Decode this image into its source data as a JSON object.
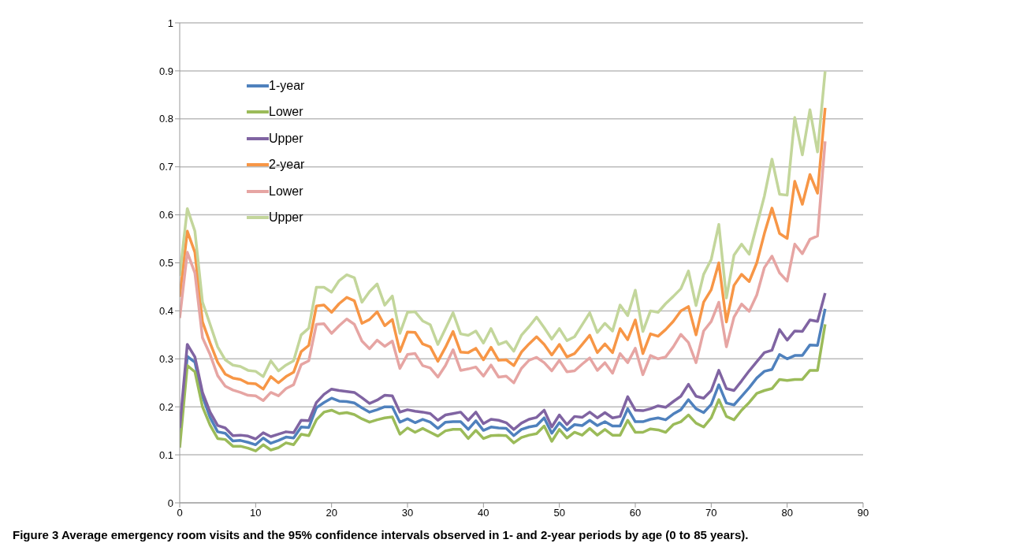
{
  "chart_data": {
    "type": "line",
    "title": "Figure 3 Average emergency room visits and the 95% confidence intervals observed in 1- and 2-year periods by age (0 to 85 years).",
    "x": [
      0,
      1,
      2,
      3,
      4,
      5,
      6,
      7,
      8,
      9,
      10,
      11,
      12,
      13,
      14,
      15,
      16,
      17,
      18,
      19,
      20,
      21,
      22,
      23,
      24,
      25,
      26,
      27,
      28,
      29,
      30,
      31,
      32,
      33,
      34,
      35,
      36,
      37,
      38,
      39,
      40,
      41,
      42,
      43,
      44,
      45,
      46,
      47,
      48,
      49,
      50,
      51,
      52,
      53,
      54,
      55,
      56,
      57,
      58,
      59,
      60,
      61,
      62,
      63,
      64,
      65,
      66,
      67,
      68,
      69,
      70,
      71,
      72,
      73,
      74,
      75,
      76,
      77,
      78,
      79,
      80,
      81,
      82,
      83,
      84,
      85
    ],
    "series": [
      {
        "name": "1-year",
        "color": "#4f81bd",
        "values": [
          0.14,
          0.305,
          0.293,
          0.222,
          0.178,
          0.148,
          0.145,
          0.129,
          0.13,
          0.126,
          0.121,
          0.135,
          0.124,
          0.13,
          0.137,
          0.135,
          0.158,
          0.157,
          0.198,
          0.209,
          0.218,
          0.212,
          0.211,
          0.208,
          0.198,
          0.189,
          0.194,
          0.2,
          0.2,
          0.168,
          0.175,
          0.167,
          0.174,
          0.168,
          0.155,
          0.168,
          0.169,
          0.169,
          0.153,
          0.171,
          0.151,
          0.158,
          0.156,
          0.155,
          0.14,
          0.153,
          0.158,
          0.161,
          0.177,
          0.145,
          0.167,
          0.151,
          0.163,
          0.161,
          0.172,
          0.161,
          0.169,
          0.16,
          0.16,
          0.196,
          0.169,
          0.169,
          0.174,
          0.177,
          0.173,
          0.185,
          0.194,
          0.215,
          0.196,
          0.188,
          0.205,
          0.246,
          0.208,
          0.204,
          0.222,
          0.24,
          0.26,
          0.274,
          0.278,
          0.309,
          0.3,
          0.307,
          0.307,
          0.329,
          0.328,
          0.404
        ]
      },
      {
        "name": "Lower",
        "color": "#9bbb59",
        "values": [
          0.115,
          0.286,
          0.273,
          0.2,
          0.162,
          0.134,
          0.132,
          0.118,
          0.118,
          0.114,
          0.108,
          0.121,
          0.11,
          0.115,
          0.125,
          0.121,
          0.143,
          0.14,
          0.173,
          0.189,
          0.193,
          0.186,
          0.188,
          0.184,
          0.175,
          0.168,
          0.173,
          0.177,
          0.179,
          0.143,
          0.156,
          0.147,
          0.155,
          0.147,
          0.139,
          0.15,
          0.153,
          0.153,
          0.134,
          0.151,
          0.134,
          0.14,
          0.141,
          0.14,
          0.125,
          0.136,
          0.141,
          0.144,
          0.16,
          0.128,
          0.153,
          0.135,
          0.147,
          0.141,
          0.155,
          0.141,
          0.153,
          0.141,
          0.141,
          0.172,
          0.147,
          0.147,
          0.154,
          0.152,
          0.147,
          0.163,
          0.169,
          0.183,
          0.166,
          0.158,
          0.177,
          0.215,
          0.18,
          0.173,
          0.193,
          0.209,
          0.228,
          0.234,
          0.238,
          0.257,
          0.255,
          0.257,
          0.257,
          0.276,
          0.276,
          0.372
        ]
      },
      {
        "name": "Upper",
        "color": "#8064a2",
        "values": [
          0.156,
          0.33,
          0.304,
          0.23,
          0.189,
          0.161,
          0.156,
          0.14,
          0.141,
          0.139,
          0.133,
          0.146,
          0.138,
          0.143,
          0.148,
          0.146,
          0.172,
          0.171,
          0.209,
          0.226,
          0.237,
          0.234,
          0.232,
          0.23,
          0.219,
          0.207,
          0.214,
          0.224,
          0.223,
          0.189,
          0.194,
          0.191,
          0.189,
          0.186,
          0.172,
          0.183,
          0.186,
          0.189,
          0.172,
          0.189,
          0.165,
          0.174,
          0.172,
          0.167,
          0.153,
          0.166,
          0.174,
          0.178,
          0.193,
          0.158,
          0.183,
          0.163,
          0.18,
          0.178,
          0.189,
          0.177,
          0.188,
          0.177,
          0.18,
          0.221,
          0.193,
          0.192,
          0.196,
          0.202,
          0.199,
          0.211,
          0.222,
          0.247,
          0.222,
          0.218,
          0.234,
          0.276,
          0.238,
          0.234,
          0.254,
          0.275,
          0.294,
          0.313,
          0.318,
          0.361,
          0.339,
          0.358,
          0.357,
          0.381,
          0.378,
          0.437
        ]
      },
      {
        "name": "2-year",
        "color": "#f79646",
        "values": [
          0.429,
          0.566,
          0.522,
          0.377,
          0.333,
          0.293,
          0.268,
          0.26,
          0.257,
          0.249,
          0.248,
          0.237,
          0.263,
          0.25,
          0.263,
          0.272,
          0.315,
          0.328,
          0.41,
          0.412,
          0.397,
          0.415,
          0.428,
          0.421,
          0.374,
          0.382,
          0.398,
          0.369,
          0.382,
          0.315,
          0.356,
          0.355,
          0.331,
          0.325,
          0.295,
          0.324,
          0.357,
          0.314,
          0.313,
          0.322,
          0.298,
          0.324,
          0.297,
          0.298,
          0.286,
          0.314,
          0.331,
          0.346,
          0.33,
          0.308,
          0.33,
          0.304,
          0.311,
          0.33,
          0.349,
          0.313,
          0.331,
          0.313,
          0.363,
          0.34,
          0.381,
          0.311,
          0.352,
          0.347,
          0.361,
          0.378,
          0.4,
          0.409,
          0.35,
          0.418,
          0.444,
          0.5,
          0.377,
          0.453,
          0.476,
          0.461,
          0.5,
          0.561,
          0.614,
          0.561,
          0.551,
          0.67,
          0.622,
          0.684,
          0.645,
          0.823
        ]
      },
      {
        "name": "Lower",
        "color": "#e6a5a3",
        "values": [
          0.385,
          0.522,
          0.479,
          0.344,
          0.309,
          0.265,
          0.243,
          0.235,
          0.23,
          0.224,
          0.223,
          0.213,
          0.23,
          0.223,
          0.238,
          0.246,
          0.288,
          0.296,
          0.372,
          0.373,
          0.353,
          0.369,
          0.383,
          0.372,
          0.337,
          0.321,
          0.339,
          0.326,
          0.337,
          0.28,
          0.309,
          0.311,
          0.286,
          0.281,
          0.262,
          0.286,
          0.319,
          0.276,
          0.279,
          0.283,
          0.264,
          0.287,
          0.262,
          0.264,
          0.25,
          0.28,
          0.297,
          0.303,
          0.292,
          0.275,
          0.297,
          0.273,
          0.275,
          0.289,
          0.302,
          0.276,
          0.292,
          0.27,
          0.311,
          0.292,
          0.322,
          0.267,
          0.307,
          0.3,
          0.304,
          0.325,
          0.351,
          0.334,
          0.292,
          0.358,
          0.378,
          0.418,
          0.325,
          0.387,
          0.414,
          0.399,
          0.433,
          0.49,
          0.514,
          0.479,
          0.462,
          0.539,
          0.519,
          0.549,
          0.556,
          0.753
        ]
      },
      {
        "name": "Upper",
        "color": "#c3d69b",
        "values": [
          0.473,
          0.613,
          0.566,
          0.418,
          0.372,
          0.325,
          0.298,
          0.287,
          0.284,
          0.276,
          0.274,
          0.263,
          0.296,
          0.275,
          0.287,
          0.296,
          0.35,
          0.364,
          0.449,
          0.449,
          0.439,
          0.463,
          0.475,
          0.469,
          0.418,
          0.44,
          0.456,
          0.412,
          0.431,
          0.353,
          0.397,
          0.398,
          0.379,
          0.371,
          0.33,
          0.363,
          0.396,
          0.352,
          0.349,
          0.358,
          0.333,
          0.363,
          0.33,
          0.336,
          0.316,
          0.349,
          0.367,
          0.387,
          0.365,
          0.341,
          0.363,
          0.338,
          0.346,
          0.371,
          0.396,
          0.355,
          0.374,
          0.358,
          0.412,
          0.39,
          0.443,
          0.357,
          0.4,
          0.397,
          0.415,
          0.43,
          0.446,
          0.483,
          0.411,
          0.476,
          0.507,
          0.58,
          0.427,
          0.516,
          0.539,
          0.518,
          0.578,
          0.639,
          0.716,
          0.643,
          0.641,
          0.803,
          0.725,
          0.819,
          0.731,
          0.899
        ]
      }
    ],
    "xlim": [
      0,
      90
    ],
    "xticks": [
      0,
      10,
      20,
      30,
      40,
      50,
      60,
      70,
      80,
      90
    ],
    "ylim": [
      0,
      1
    ],
    "yticks": [
      0,
      0.1,
      0.2,
      0.3,
      0.4,
      0.5,
      0.6,
      0.7,
      0.8,
      0.9,
      1
    ],
    "grid": "y",
    "legend": "top left",
    "marker": "none",
    "line_style": "solid"
  }
}
